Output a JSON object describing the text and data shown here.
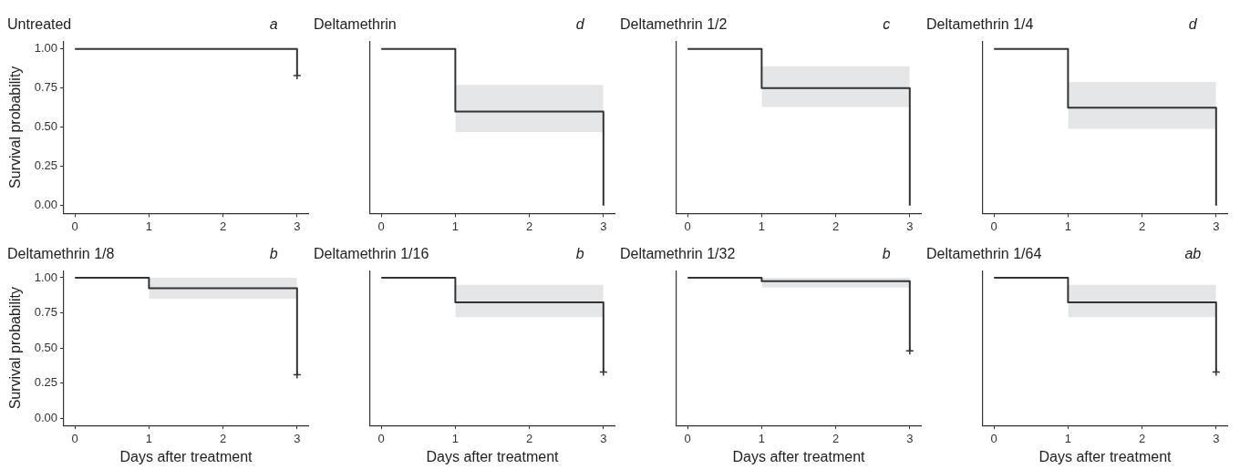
{
  "chart_data": [
    {
      "type": "step",
      "title": "Untreated",
      "ylabel": "Survival probability",
      "annotations": [
        "a"
      ],
      "xlim": [
        -0.15,
        3.15
      ],
      "ylim": [
        -0.05,
        1.05
      ],
      "xticks": [
        0,
        1,
        2,
        3
      ],
      "yticks": [
        {
          "value": 0,
          "label": "0.00"
        },
        {
          "value": 0.25,
          "label": "0.25"
        },
        {
          "value": 0.5,
          "label": "0.50"
        },
        {
          "value": 0.75,
          "label": "0.75"
        },
        {
          "value": 1,
          "label": "1.00"
        }
      ],
      "grid": false,
      "series": [
        {
          "type": "step",
          "color": "#333333",
          "x": [
            0,
            3,
            3
          ],
          "values": [
            1,
            1,
            0.83
          ]
        },
        {
          "type": "scatter",
          "color": "#333333",
          "marker": "cross",
          "x": [
            3
          ],
          "values": [
            0.83
          ]
        }
      ]
    },
    {
      "type": "step",
      "title": "Deltamethrin",
      "annotations": [
        "d"
      ],
      "xlim": [
        -0.15,
        3.15
      ],
      "ylim": [
        -0.05,
        1.05
      ],
      "xticks": [
        0,
        1,
        2,
        3
      ],
      "tick_labels": "x",
      "grid": false,
      "series": [
        {
          "type": "step",
          "color": "#333333",
          "x": [
            0,
            1,
            3,
            3
          ],
          "values": [
            1,
            0.6,
            0.6,
            0
          ],
          "lower": [
            null,
            0.47,
            0.47,
            null
          ],
          "upper": [
            null,
            0.77,
            0.77,
            null
          ]
        }
      ]
    },
    {
      "type": "step",
      "title": "Deltamethrin 1/2",
      "annotations": [
        "c"
      ],
      "xlim": [
        -0.15,
        3.15
      ],
      "ylim": [
        -0.05,
        1.05
      ],
      "xticks": [
        0,
        1,
        2,
        3
      ],
      "tick_labels": "x",
      "grid": false,
      "series": [
        {
          "type": "step",
          "color": "#333333",
          "x": [
            0,
            1,
            3,
            3
          ],
          "values": [
            1,
            0.75,
            0.75,
            0
          ],
          "lower": [
            null,
            0.63,
            0.63,
            null
          ],
          "upper": [
            null,
            0.89,
            0.89,
            null
          ]
        }
      ]
    },
    {
      "type": "step",
      "title": "Deltamethrin 1/4",
      "annotations": [
        "d"
      ],
      "xlim": [
        -0.15,
        3.15
      ],
      "ylim": [
        -0.05,
        1.05
      ],
      "xticks": [
        0,
        1,
        2,
        3
      ],
      "tick_labels": "x",
      "grid": false,
      "series": [
        {
          "type": "step",
          "color": "#333333",
          "x": [
            0,
            1,
            3,
            3
          ],
          "values": [
            1,
            0.625,
            0.625,
            0
          ],
          "lower": [
            null,
            0.49,
            0.49,
            null
          ],
          "upper": [
            null,
            0.79,
            0.79,
            null
          ]
        }
      ]
    },
    {
      "type": "step",
      "title": "Deltamethrin 1/8",
      "ylabel": "Survival probability",
      "xlabel": "Days after treatment",
      "annotations": [
        "b"
      ],
      "xlim": [
        -0.15,
        3.15
      ],
      "ylim": [
        -0.05,
        1.05
      ],
      "xticks": [
        0,
        1,
        2,
        3
      ],
      "yticks": [
        {
          "value": 0,
          "label": "0.00"
        },
        {
          "value": 0.25,
          "label": "0.25"
        },
        {
          "value": 0.5,
          "label": "0.50"
        },
        {
          "value": 0.75,
          "label": "0.75"
        },
        {
          "value": 1,
          "label": "1.00"
        }
      ],
      "grid": false,
      "series": [
        {
          "type": "step",
          "color": "#333333",
          "x": [
            0,
            1,
            3,
            3
          ],
          "values": [
            1,
            0.925,
            0.925,
            0.31
          ],
          "lower": [
            null,
            0.85,
            0.85,
            null
          ],
          "upper": [
            null,
            1,
            1,
            null
          ]
        },
        {
          "type": "scatter",
          "color": "#333333",
          "marker": "cross",
          "x": [
            3
          ],
          "values": [
            0.31
          ]
        }
      ]
    },
    {
      "type": "step",
      "title": "Deltamethrin 1/16",
      "xlabel": "Days after treatment",
      "annotations": [
        "b"
      ],
      "xlim": [
        -0.15,
        3.15
      ],
      "ylim": [
        -0.05,
        1.05
      ],
      "xticks": [
        0,
        1,
        2,
        3
      ],
      "tick_labels": "x",
      "grid": false,
      "series": [
        {
          "type": "step",
          "color": "#333333",
          "x": [
            0,
            1,
            3,
            3
          ],
          "values": [
            1,
            0.825,
            0.825,
            0.33
          ],
          "lower": [
            null,
            0.72,
            0.72,
            null
          ],
          "upper": [
            null,
            0.95,
            0.95,
            null
          ]
        },
        {
          "type": "scatter",
          "color": "#333333",
          "marker": "cross",
          "x": [
            3
          ],
          "values": [
            0.33
          ]
        }
      ]
    },
    {
      "type": "step",
      "title": "Deltamethrin 1/32",
      "xlabel": "Days after treatment",
      "annotations": [
        "b"
      ],
      "xlim": [
        -0.15,
        3.15
      ],
      "ylim": [
        -0.05,
        1.05
      ],
      "xticks": [
        0,
        1,
        2,
        3
      ],
      "tick_labels": "x",
      "grid": false,
      "series": [
        {
          "type": "step",
          "color": "#333333",
          "x": [
            0,
            1,
            3,
            3
          ],
          "values": [
            1,
            0.975,
            0.975,
            0.48
          ],
          "lower": [
            null,
            0.93,
            0.93,
            null
          ],
          "upper": [
            null,
            1,
            1,
            null
          ]
        },
        {
          "type": "scatter",
          "color": "#333333",
          "marker": "cross",
          "x": [
            3
          ],
          "values": [
            0.48
          ]
        }
      ]
    },
    {
      "type": "step",
      "title": "Deltamethrin 1/64",
      "xlabel": "Days after treatment",
      "annotations": [
        "ab"
      ],
      "xlim": [
        -0.15,
        3.15
      ],
      "ylim": [
        -0.05,
        1.05
      ],
      "xticks": [
        0,
        1,
        2,
        3
      ],
      "tick_labels": "x",
      "grid": false,
      "series": [
        {
          "type": "step",
          "color": "#333333",
          "x": [
            0,
            1,
            3,
            3
          ],
          "values": [
            1,
            0.825,
            0.825,
            0.33
          ],
          "lower": [
            null,
            0.72,
            0.72,
            null
          ],
          "upper": [
            null,
            0.95,
            0.95,
            null
          ]
        },
        {
          "type": "scatter",
          "color": "#333333",
          "marker": "cross",
          "x": [
            3
          ],
          "values": [
            0.33
          ]
        }
      ]
    }
  ]
}
